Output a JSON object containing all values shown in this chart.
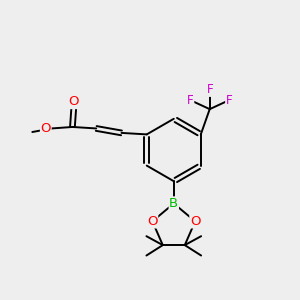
{
  "bg_color": "#eeeeee",
  "bond_color": "#000000",
  "bond_width": 1.4,
  "atom_colors": {
    "O": "#ff0000",
    "B": "#00bb00",
    "F": "#cc00cc",
    "C": "#000000"
  },
  "font_size": 8.5,
  "fig_size": [
    3.0,
    3.0
  ],
  "dpi": 100
}
